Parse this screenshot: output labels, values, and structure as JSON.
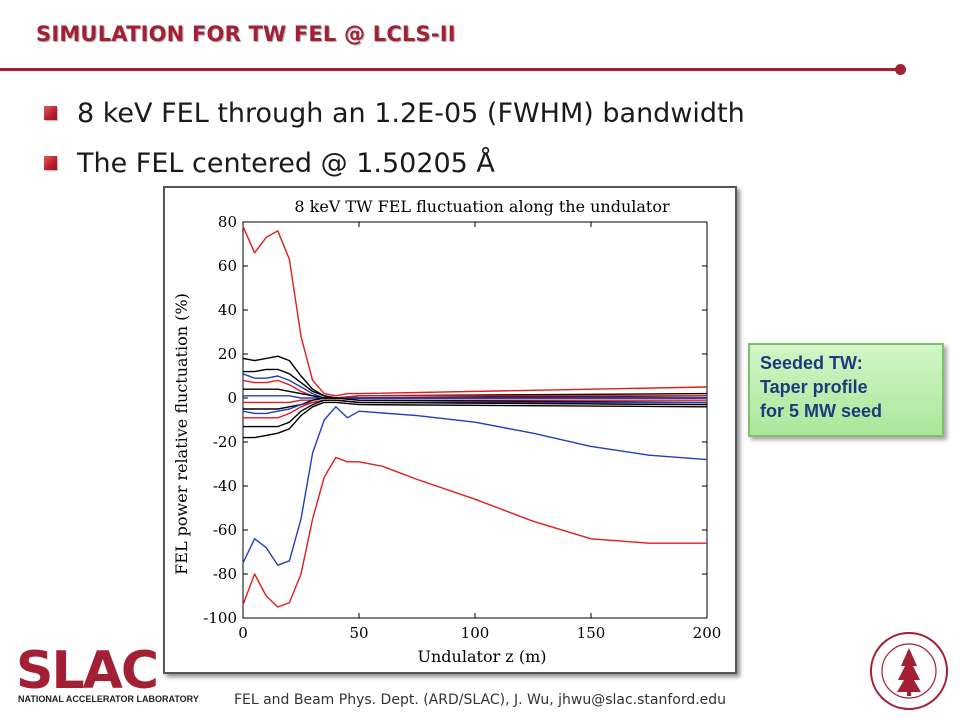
{
  "header": {
    "title": "SIMULATION FOR TW FEL @ LCLS-II"
  },
  "bullets": [
    {
      "text": "8 keV FEL through an 1.2E-05 (FWHM) bandwidth"
    },
    {
      "text": "The FEL centered @ 1.50205 Å"
    }
  ],
  "callout": {
    "lines": [
      "Seeded TW:",
      "Taper profile",
      "for 5 MW seed"
    ]
  },
  "footer": {
    "text": "FEL and Beam Phys. Dept. (ARD/SLAC), J. Wu, jhwu@slac.stanford.edu"
  },
  "logo": {
    "text": "SLAC",
    "tagline": "NATIONAL ACCELERATOR LABORATORY"
  },
  "colors": {
    "accent": "#a31f34",
    "red": "#e41a1c",
    "blue": "#1f3fbf",
    "black": "#000000"
  },
  "chart_data": {
    "type": "line",
    "title": "8 keV TW FEL fluctuation along the undulator",
    "xlabel": "Undulator z (m)",
    "ylabel": "FEL power relative fluctuation (%)",
    "xlim": [
      0,
      200
    ],
    "ylim": [
      -100,
      80
    ],
    "xticks": [
      0,
      50,
      100,
      150,
      200
    ],
    "yticks": [
      80,
      60,
      40,
      20,
      0,
      -20,
      -40,
      -60,
      -80,
      -100
    ],
    "series": [
      {
        "color": "red",
        "x": [
          0,
          5,
          10,
          15,
          20,
          25,
          30,
          35,
          40,
          45,
          50,
          200
        ],
        "y": [
          78,
          66,
          73,
          76,
          63,
          28,
          8,
          2,
          1,
          2,
          2,
          5
        ]
      },
      {
        "color": "black",
        "x": [
          0,
          5,
          10,
          15,
          20,
          25,
          30,
          35,
          40,
          50,
          200
        ],
        "y": [
          18,
          17,
          18,
          19,
          17,
          10,
          4,
          1,
          0,
          1,
          2
        ]
      },
      {
        "color": "black",
        "x": [
          0,
          5,
          10,
          15,
          20,
          25,
          30,
          35,
          40,
          50,
          200
        ],
        "y": [
          12,
          12,
          13,
          13,
          11,
          7,
          3,
          1,
          0,
          0,
          1
        ]
      },
      {
        "color": "blue",
        "x": [
          0,
          5,
          10,
          15,
          20,
          25,
          30,
          35,
          40,
          50,
          200
        ],
        "y": [
          11,
          9,
          9,
          10,
          8,
          5,
          2,
          0,
          0,
          0,
          0
        ]
      },
      {
        "color": "red",
        "x": [
          0,
          5,
          10,
          15,
          20,
          25,
          30,
          35,
          40,
          50,
          200
        ],
        "y": [
          8,
          7,
          7,
          8,
          6,
          3,
          1,
          0,
          0,
          1,
          1
        ]
      },
      {
        "color": "black",
        "x": [
          0,
          5,
          10,
          15,
          20,
          25,
          30,
          35,
          40,
          50,
          200
        ],
        "y": [
          4,
          4,
          4,
          4,
          3,
          2,
          1,
          0,
          0,
          0,
          0
        ]
      },
      {
        "color": "blue",
        "x": [
          0,
          5,
          10,
          15,
          20,
          25,
          30,
          35,
          40,
          50,
          200
        ],
        "y": [
          1,
          1,
          1,
          1,
          1,
          0,
          0,
          0,
          0,
          0,
          0
        ]
      },
      {
        "color": "red",
        "x": [
          0,
          5,
          10,
          15,
          20,
          25,
          30,
          35,
          40,
          50,
          200
        ],
        "y": [
          -2,
          -2,
          -2,
          -2,
          -2,
          -1,
          -1,
          0,
          0,
          -1,
          -1
        ]
      },
      {
        "color": "black",
        "x": [
          0,
          5,
          10,
          15,
          20,
          25,
          30,
          35,
          40,
          50,
          200
        ],
        "y": [
          -5,
          -5,
          -5,
          -5,
          -4,
          -3,
          -1,
          0,
          0,
          -1,
          -2
        ]
      },
      {
        "color": "blue",
        "x": [
          0,
          5,
          10,
          15,
          20,
          25,
          30,
          35,
          40,
          50,
          200
        ],
        "y": [
          -6,
          -7,
          -7,
          -6,
          -5,
          -3,
          -2,
          -1,
          -1,
          -2,
          -2
        ]
      },
      {
        "color": "red",
        "x": [
          0,
          5,
          10,
          15,
          20,
          25,
          30,
          35,
          40,
          50,
          200
        ],
        "y": [
          -9,
          -9,
          -9,
          -9,
          -7,
          -4,
          -2,
          -1,
          -1,
          -2,
          -3
        ]
      },
      {
        "color": "black",
        "x": [
          0,
          5,
          10,
          15,
          20,
          25,
          30,
          35,
          40,
          50,
          200
        ],
        "y": [
          -13,
          -13,
          -13,
          -13,
          -11,
          -6,
          -3,
          -1,
          -1,
          -2,
          -3
        ]
      },
      {
        "color": "black",
        "x": [
          0,
          5,
          10,
          15,
          20,
          25,
          30,
          35,
          40,
          50,
          200
        ],
        "y": [
          -18,
          -18,
          -17,
          -16,
          -14,
          -8,
          -4,
          -2,
          -2,
          -3,
          -4
        ]
      },
      {
        "color": "blue",
        "x": [
          0,
          5,
          10,
          15,
          20,
          25,
          30,
          35,
          40,
          45,
          50,
          75,
          100,
          125,
          150,
          175,
          200
        ],
        "y": [
          -75,
          -64,
          -68,
          -76,
          -74,
          -55,
          -25,
          -10,
          -4,
          -9,
          -6,
          -8,
          -11,
          -16,
          -22,
          -26,
          -28
        ]
      },
      {
        "color": "red",
        "x": [
          0,
          5,
          10,
          15,
          20,
          25,
          30,
          35,
          40,
          45,
          50,
          60,
          75,
          100,
          125,
          150,
          175,
          200
        ],
        "y": [
          -94,
          -80,
          -90,
          -95,
          -93,
          -80,
          -55,
          -36,
          -27,
          -29,
          -29,
          -31,
          -37,
          -46,
          -56,
          -64,
          -66,
          -66
        ]
      }
    ]
  }
}
